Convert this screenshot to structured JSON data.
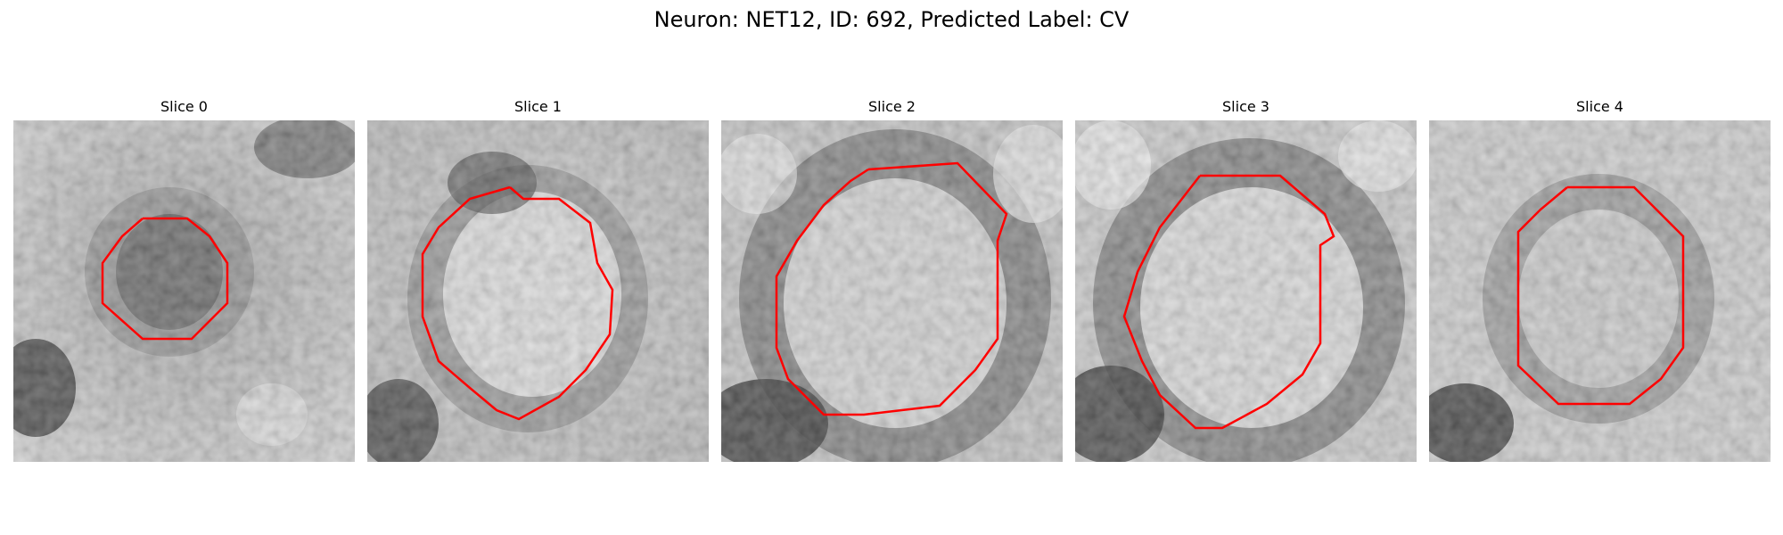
{
  "figure": {
    "title": "Neuron: NET12, ID: 692, Predicted Label: CV"
  },
  "colors": {
    "contour": "#ff0000",
    "background": "#ffffff"
  },
  "panels": [
    {
      "title": "Slice 0"
    },
    {
      "title": "Slice 1"
    },
    {
      "title": "Slice 2"
    },
    {
      "title": "Slice 3"
    },
    {
      "title": "Slice 4"
    }
  ]
}
